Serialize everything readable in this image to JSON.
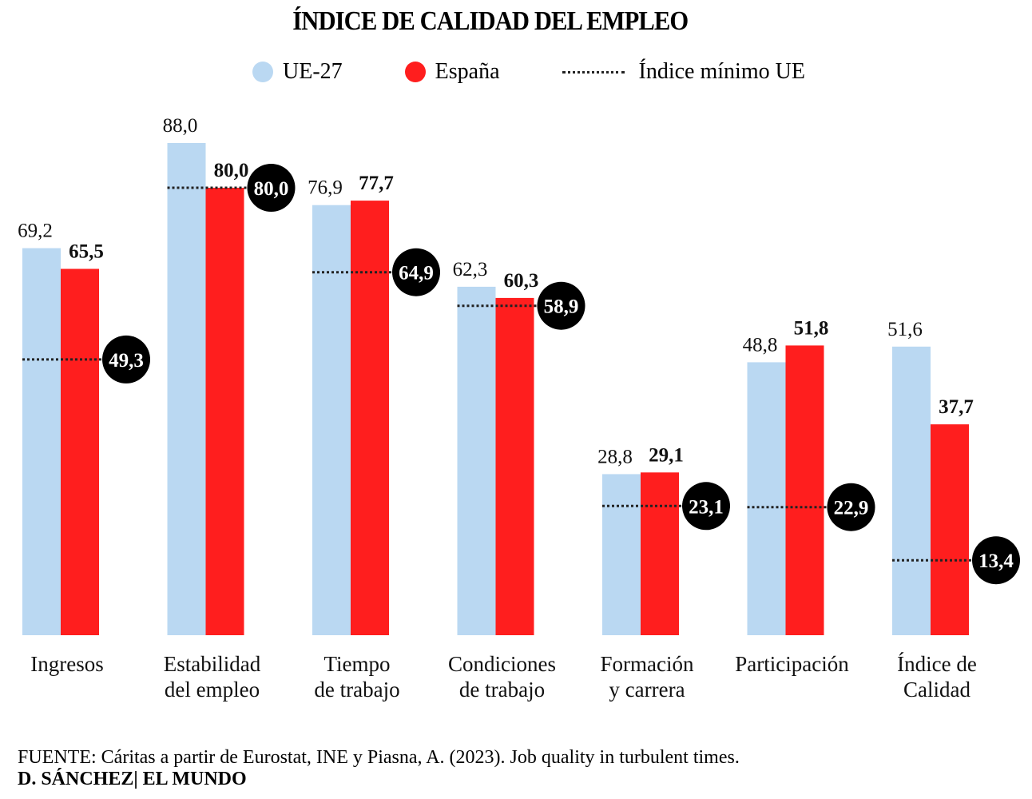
{
  "chart_data": {
    "type": "bar",
    "title": "ÍNDICE DE CALIDAD DEL EMPLEO",
    "categories": [
      [
        "Ingresos"
      ],
      [
        "Estabilidad",
        "del empleo"
      ],
      [
        "Tiempo",
        "de trabajo"
      ],
      [
        "Condiciones",
        "de trabajo"
      ],
      [
        "Formación",
        "y carrera"
      ],
      [
        "Participación"
      ],
      [
        "Índice de",
        "Calidad"
      ]
    ],
    "series": [
      {
        "name": "UE-27",
        "color": "#bad8f2",
        "values": [
          69.2,
          88.0,
          76.9,
          62.3,
          28.8,
          48.8,
          51.6
        ],
        "labels": [
          "69,2",
          "88,0",
          "76,9",
          "62,3",
          "28,8",
          "48,8",
          "51,6"
        ]
      },
      {
        "name": "España",
        "color": "#ff1e1e",
        "values": [
          65.5,
          80.0,
          77.7,
          60.3,
          29.1,
          51.8,
          37.7
        ],
        "labels": [
          "65,5",
          "80,0",
          "77,7",
          "60,3",
          "29,1",
          "51,8",
          "37,7"
        ]
      }
    ],
    "min_index": {
      "name": "Índice mínimo UE",
      "values": [
        49.3,
        80.0,
        64.9,
        58.9,
        23.1,
        22.9,
        13.4
      ],
      "labels": [
        "49,3",
        "80,0",
        "64,9",
        "58,9",
        "23,1",
        "22,9",
        "13,4"
      ]
    },
    "ylim": [
      0,
      100
    ],
    "legend": "top"
  },
  "footer": {
    "source": "FUENTE: Cáritas a partir de Eurostat, INE y Piasna, A. (2023). Job quality in turbulent times.",
    "credit": "D. SÁNCHEZ| EL MUNDO"
  }
}
